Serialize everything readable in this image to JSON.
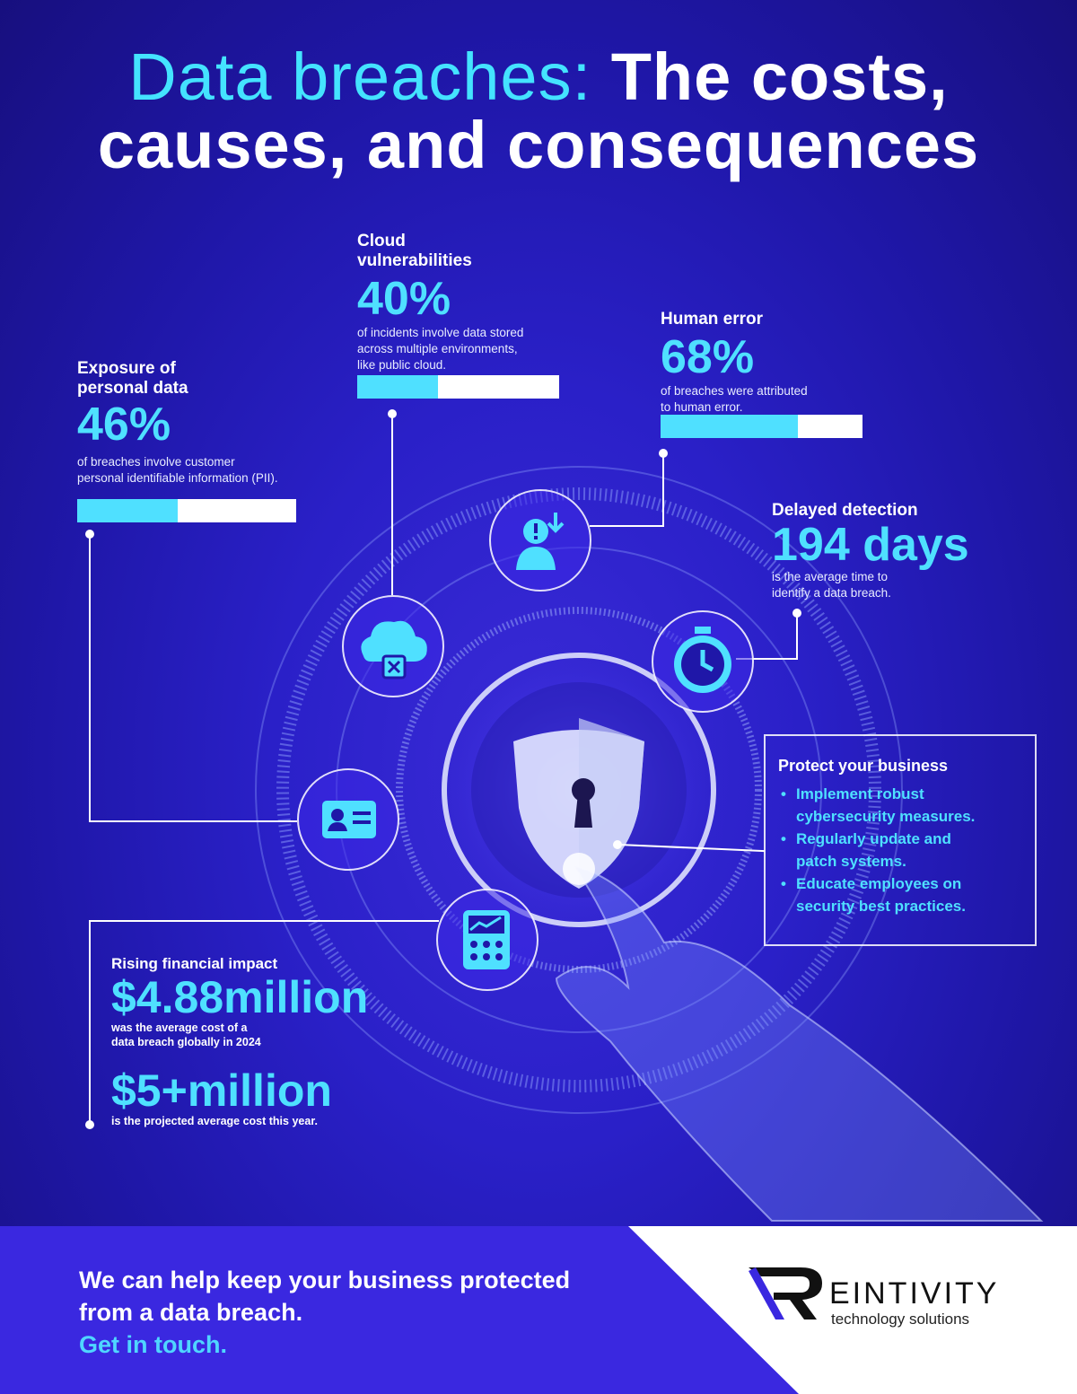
{
  "title": {
    "light": "Data breaches:",
    "bold_line1": "The costs,",
    "bold_line2": "causes, and consequences"
  },
  "stats": {
    "exposure": {
      "label_l1": "Exposure of",
      "label_l2": "personal data",
      "value": "46%",
      "desc_l1": "of breaches involve customer",
      "desc_l2": "personal identifiable information (PII).",
      "fill": 0.46
    },
    "cloud": {
      "label_l1": "Cloud",
      "label_l2": "vulnerabilities",
      "value": "40%",
      "desc_l1": "of incidents involve data stored",
      "desc_l2": "across multiple environments,",
      "desc_l3": "like public cloud.",
      "fill": 0.4
    },
    "human": {
      "label": "Human error",
      "value": "68%",
      "desc_l1": "of breaches were attributed",
      "desc_l2": "to human error.",
      "fill": 0.68
    },
    "delayed": {
      "label": "Delayed detection",
      "value": "194 days",
      "desc_l1": "is the average time to",
      "desc_l2": "identify a data breach."
    },
    "financial": {
      "label": "Rising financial impact",
      "value1": "$4.88million",
      "desc1_l1": "was the average cost of a",
      "desc1_l2": "data breach globally in 2024",
      "value2": "$5+million",
      "desc2": "is the projected average cost this year."
    }
  },
  "protect": {
    "title": "Protect your business",
    "items_l1": [
      "Implement robust",
      "Regularly update and",
      "Educate employees on"
    ],
    "items_l2": [
      "cybersecurity measures.",
      "patch systems.",
      "security best practices."
    ]
  },
  "footer": {
    "line1": "We can help keep your business protected",
    "line2": "from a data breach.",
    "link": "Get in touch."
  },
  "logo": {
    "brand": "EINTIVITY",
    "tagline": "technology solutions"
  },
  "colors": {
    "accent": "#4fe0ff",
    "background": "#2a20c8",
    "footer": "#3a28e0"
  }
}
